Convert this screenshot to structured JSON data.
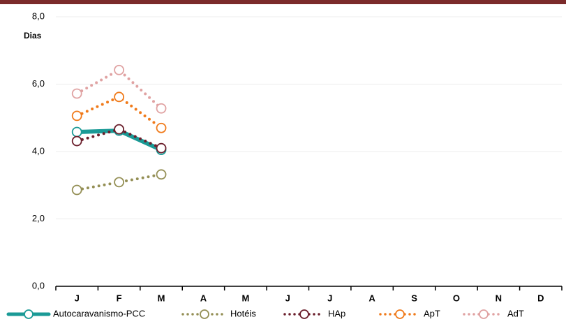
{
  "chart_data": {
    "type": "line",
    "y_label": "Dias",
    "categories": [
      "J",
      "F",
      "M",
      "A",
      "M",
      "J",
      "J",
      "A",
      "S",
      "O",
      "N",
      "D"
    ],
    "series": [
      {
        "name": "Autocaravanismo-PCC",
        "color": "#1a9a96",
        "style": "solid",
        "values": [
          4.58,
          4.62,
          4.05,
          null,
          null,
          null,
          null,
          null,
          null,
          null,
          null,
          null
        ]
      },
      {
        "name": "Hotéis",
        "color": "#948f55",
        "style": "dotted",
        "values": [
          2.86,
          3.09,
          3.32,
          null,
          null,
          null,
          null,
          null,
          null,
          null,
          null,
          null
        ]
      },
      {
        "name": "HAp",
        "color": "#6b1f2c",
        "style": "dotted",
        "values": [
          4.31,
          4.66,
          4.1,
          null,
          null,
          null,
          null,
          null,
          null,
          null,
          null,
          null
        ]
      },
      {
        "name": "ApT",
        "color": "#f07a1a",
        "style": "dotted",
        "values": [
          5.06,
          5.62,
          4.7,
          null,
          null,
          null,
          null,
          null,
          null,
          null,
          null,
          null
        ]
      },
      {
        "name": "AdT",
        "color": "#e0a2a2",
        "style": "dotted",
        "values": [
          5.72,
          6.42,
          5.28,
          null,
          null,
          null,
          null,
          null,
          null,
          null,
          null,
          null
        ]
      }
    ],
    "ylim": [
      0,
      8
    ],
    "yticks": [
      {
        "value": 0,
        "label": "0,0"
      },
      {
        "value": 2,
        "label": "2,0"
      },
      {
        "value": 4,
        "label": "4,0"
      },
      {
        "value": 6,
        "label": "6,0"
      },
      {
        "value": 8,
        "label": "8,0"
      }
    ],
    "grid": true,
    "legend": "bottom"
  }
}
